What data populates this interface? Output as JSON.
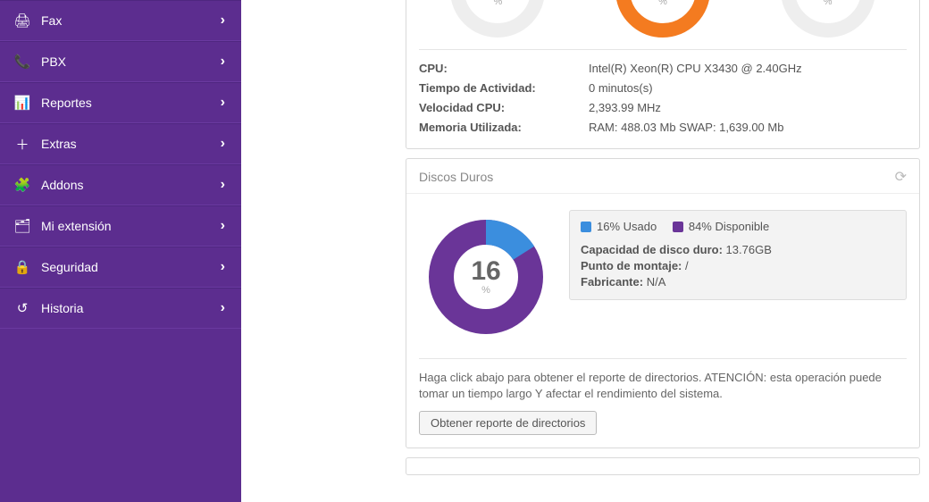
{
  "sidebar": {
    "items": [
      {
        "label": "Fax",
        "icon": "🖨"
      },
      {
        "label": "PBX",
        "icon": "📞"
      },
      {
        "label": "Reportes",
        "icon": "📊"
      },
      {
        "label": "Extras",
        "icon": "＋"
      },
      {
        "label": "Addons",
        "icon": "🧩"
      },
      {
        "label": "Mi extensión",
        "icon": "🗂"
      },
      {
        "label": "Seguridad",
        "icon": "🔒"
      },
      {
        "label": "Historia",
        "icon": "↺"
      }
    ]
  },
  "gauges": {
    "track_color": "#eeeeee",
    "items": [
      {
        "value": 5,
        "color": "#cccccc"
      },
      {
        "value": 72,
        "color": "#f47b20"
      },
      {
        "value": 0,
        "color": "#cccccc"
      }
    ]
  },
  "sys": {
    "rows": [
      {
        "k": "CPU:",
        "v": "Intel(R) Xeon(R) CPU X3430 @ 2.40GHz"
      },
      {
        "k": "Tiempo de Actividad:",
        "v": "0 minutos(s)"
      },
      {
        "k": "Velocidad CPU:",
        "v": "2,393.99 MHz"
      },
      {
        "k": "Memoria Utilizada:",
        "v": "RAM: 488.03 Mb SWAP: 1,639.00 Mb"
      }
    ]
  },
  "disks": {
    "title": "Discos Duros",
    "used_pct": 16,
    "avail_pct": 84,
    "used_color": "#3b8ede",
    "avail_color": "#6a3598",
    "track_color": "#eeeeee",
    "legend_used": "16% Usado",
    "legend_avail": "84% Disponible",
    "cap_label": "Capacidad de disco duro:",
    "cap_value": "13.76GB",
    "mount_label": "Punto de montaje:",
    "mount_value": "/",
    "maker_label": "Fabricante:",
    "maker_value": "N/A",
    "report_text": "Haga click abajo para obtener el reporte de directorios. ATENCIÓN: esta operación puede tomar un tiempo largo Y afectar el rendimiento del sistema.",
    "report_btn": "Obtener reporte de directorios"
  }
}
